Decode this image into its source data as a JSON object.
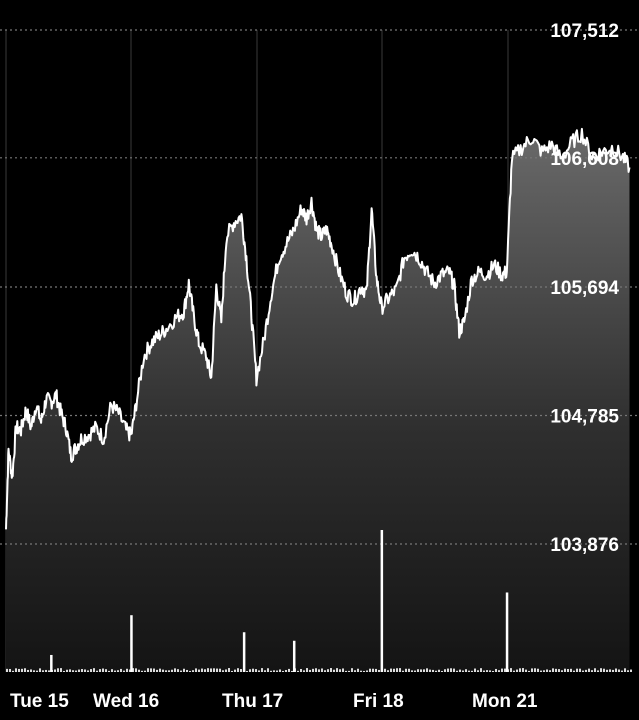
{
  "chart_data": {
    "type": "area",
    "title": "",
    "xlabel": "",
    "ylabel": "",
    "x_tick_labels": [
      "Tue 15",
      "Wed 16",
      "Thu 17",
      "Fri 18",
      "Mon 21"
    ],
    "y_tick_labels": [
      "107,512",
      "106,608",
      "105,694",
      "104,785",
      "103,876"
    ],
    "y_tick_values": [
      107512,
      106608,
      105694,
      104785,
      103876
    ],
    "ylim": [
      102900,
      107700
    ],
    "grid": true,
    "legend": "none",
    "colors": {
      "background": "#000000",
      "line": "#ffffff",
      "grid": "#777777",
      "day_divider": "#3a3a3a"
    },
    "series": [
      {
        "points": [
          {
            "x": 0.0,
            "y": 103980
          },
          {
            "x": 0.01,
            "y": 104540
          },
          {
            "x": 0.025,
            "y": 104350
          },
          {
            "x": 0.04,
            "y": 104700
          },
          {
            "x": 0.06,
            "y": 104680
          },
          {
            "x": 0.08,
            "y": 104830
          },
          {
            "x": 0.1,
            "y": 104700
          },
          {
            "x": 0.12,
            "y": 104860
          },
          {
            "x": 0.14,
            "y": 104740
          },
          {
            "x": 0.16,
            "y": 104900
          },
          {
            "x": 0.18,
            "y": 104880
          },
          {
            "x": 0.2,
            "y": 104930
          },
          {
            "x": 0.22,
            "y": 104800
          },
          {
            "x": 0.24,
            "y": 104700
          },
          {
            "x": 0.26,
            "y": 104500
          },
          {
            "x": 0.28,
            "y": 104560
          },
          {
            "x": 0.3,
            "y": 104620
          },
          {
            "x": 0.33,
            "y": 104650
          },
          {
            "x": 0.36,
            "y": 104700
          },
          {
            "x": 0.39,
            "y": 104620
          },
          {
            "x": 0.42,
            "y": 104860
          },
          {
            "x": 0.45,
            "y": 104800
          },
          {
            "x": 0.48,
            "y": 104680
          },
          {
            "x": 0.5,
            "y": 104640
          },
          {
            "x": 0.52,
            "y": 104870
          },
          {
            "x": 0.55,
            "y": 105200
          },
          {
            "x": 0.58,
            "y": 105300
          },
          {
            "x": 0.61,
            "y": 105350
          },
          {
            "x": 0.64,
            "y": 105400
          },
          {
            "x": 0.68,
            "y": 105480
          },
          {
            "x": 0.71,
            "y": 105520
          },
          {
            "x": 0.73,
            "y": 105720
          },
          {
            "x": 0.75,
            "y": 105480
          },
          {
            "x": 0.77,
            "y": 105300
          },
          {
            "x": 0.8,
            "y": 105200
          },
          {
            "x": 0.82,
            "y": 105050
          },
          {
            "x": 0.84,
            "y": 105700
          },
          {
            "x": 0.86,
            "y": 105450
          },
          {
            "x": 0.88,
            "y": 106050
          },
          {
            "x": 0.91,
            "y": 106150
          },
          {
            "x": 0.94,
            "y": 106200
          },
          {
            "x": 0.96,
            "y": 105900
          },
          {
            "x": 0.98,
            "y": 105500
          },
          {
            "x": 1.0,
            "y": 105050
          },
          {
            "x": 1.03,
            "y": 105320
          },
          {
            "x": 1.06,
            "y": 105650
          },
          {
            "x": 1.09,
            "y": 105900
          },
          {
            "x": 1.12,
            "y": 106000
          },
          {
            "x": 1.15,
            "y": 106100
          },
          {
            "x": 1.18,
            "y": 106250
          },
          {
            "x": 1.2,
            "y": 106180
          },
          {
            "x": 1.22,
            "y": 106300
          },
          {
            "x": 1.24,
            "y": 106100
          },
          {
            "x": 1.26,
            "y": 106050
          },
          {
            "x": 1.28,
            "y": 106100
          },
          {
            "x": 1.3,
            "y": 106000
          },
          {
            "x": 1.33,
            "y": 105800
          },
          {
            "x": 1.36,
            "y": 105650
          },
          {
            "x": 1.39,
            "y": 105600
          },
          {
            "x": 1.42,
            "y": 105700
          },
          {
            "x": 1.44,
            "y": 105650
          },
          {
            "x": 1.46,
            "y": 106250
          },
          {
            "x": 1.48,
            "y": 105750
          },
          {
            "x": 1.5,
            "y": 105550
          },
          {
            "x": 1.53,
            "y": 105620
          },
          {
            "x": 1.56,
            "y": 105680
          },
          {
            "x": 1.59,
            "y": 105900
          },
          {
            "x": 1.62,
            "y": 105960
          },
          {
            "x": 1.65,
            "y": 105900
          },
          {
            "x": 1.68,
            "y": 105800
          },
          {
            "x": 1.71,
            "y": 105720
          },
          {
            "x": 1.74,
            "y": 105780
          },
          {
            "x": 1.77,
            "y": 105800
          },
          {
            "x": 1.79,
            "y": 105700
          },
          {
            "x": 1.81,
            "y": 105380
          },
          {
            "x": 1.83,
            "y": 105450
          },
          {
            "x": 1.86,
            "y": 105750
          },
          {
            "x": 1.89,
            "y": 105800
          },
          {
            "x": 1.92,
            "y": 105780
          },
          {
            "x": 1.95,
            "y": 105850
          },
          {
            "x": 1.98,
            "y": 105780
          },
          {
            "x": 2.0,
            "y": 105800
          },
          {
            "x": 2.02,
            "y": 106600
          },
          {
            "x": 2.06,
            "y": 106680
          },
          {
            "x": 2.1,
            "y": 106750
          },
          {
            "x": 2.14,
            "y": 106650
          },
          {
            "x": 2.18,
            "y": 106700
          },
          {
            "x": 2.22,
            "y": 106600
          },
          {
            "x": 2.26,
            "y": 106720
          },
          {
            "x": 2.3,
            "y": 106780
          },
          {
            "x": 2.34,
            "y": 106620
          },
          {
            "x": 2.38,
            "y": 106650
          },
          {
            "x": 2.42,
            "y": 106680
          },
          {
            "x": 2.46,
            "y": 106620
          },
          {
            "x": 2.49,
            "y": 106540
          }
        ]
      },
      {
        "kind": "volume",
        "points": [
          {
            "x": 0.18,
            "y": 0.12
          },
          {
            "x": 0.5,
            "y": 0.4
          },
          {
            "x": 0.95,
            "y": 0.28
          },
          {
            "x": 1.15,
            "y": 0.22
          },
          {
            "x": 1.5,
            "y": 1.0
          },
          {
            "x": 2.0,
            "y": 0.56
          }
        ]
      }
    ]
  }
}
